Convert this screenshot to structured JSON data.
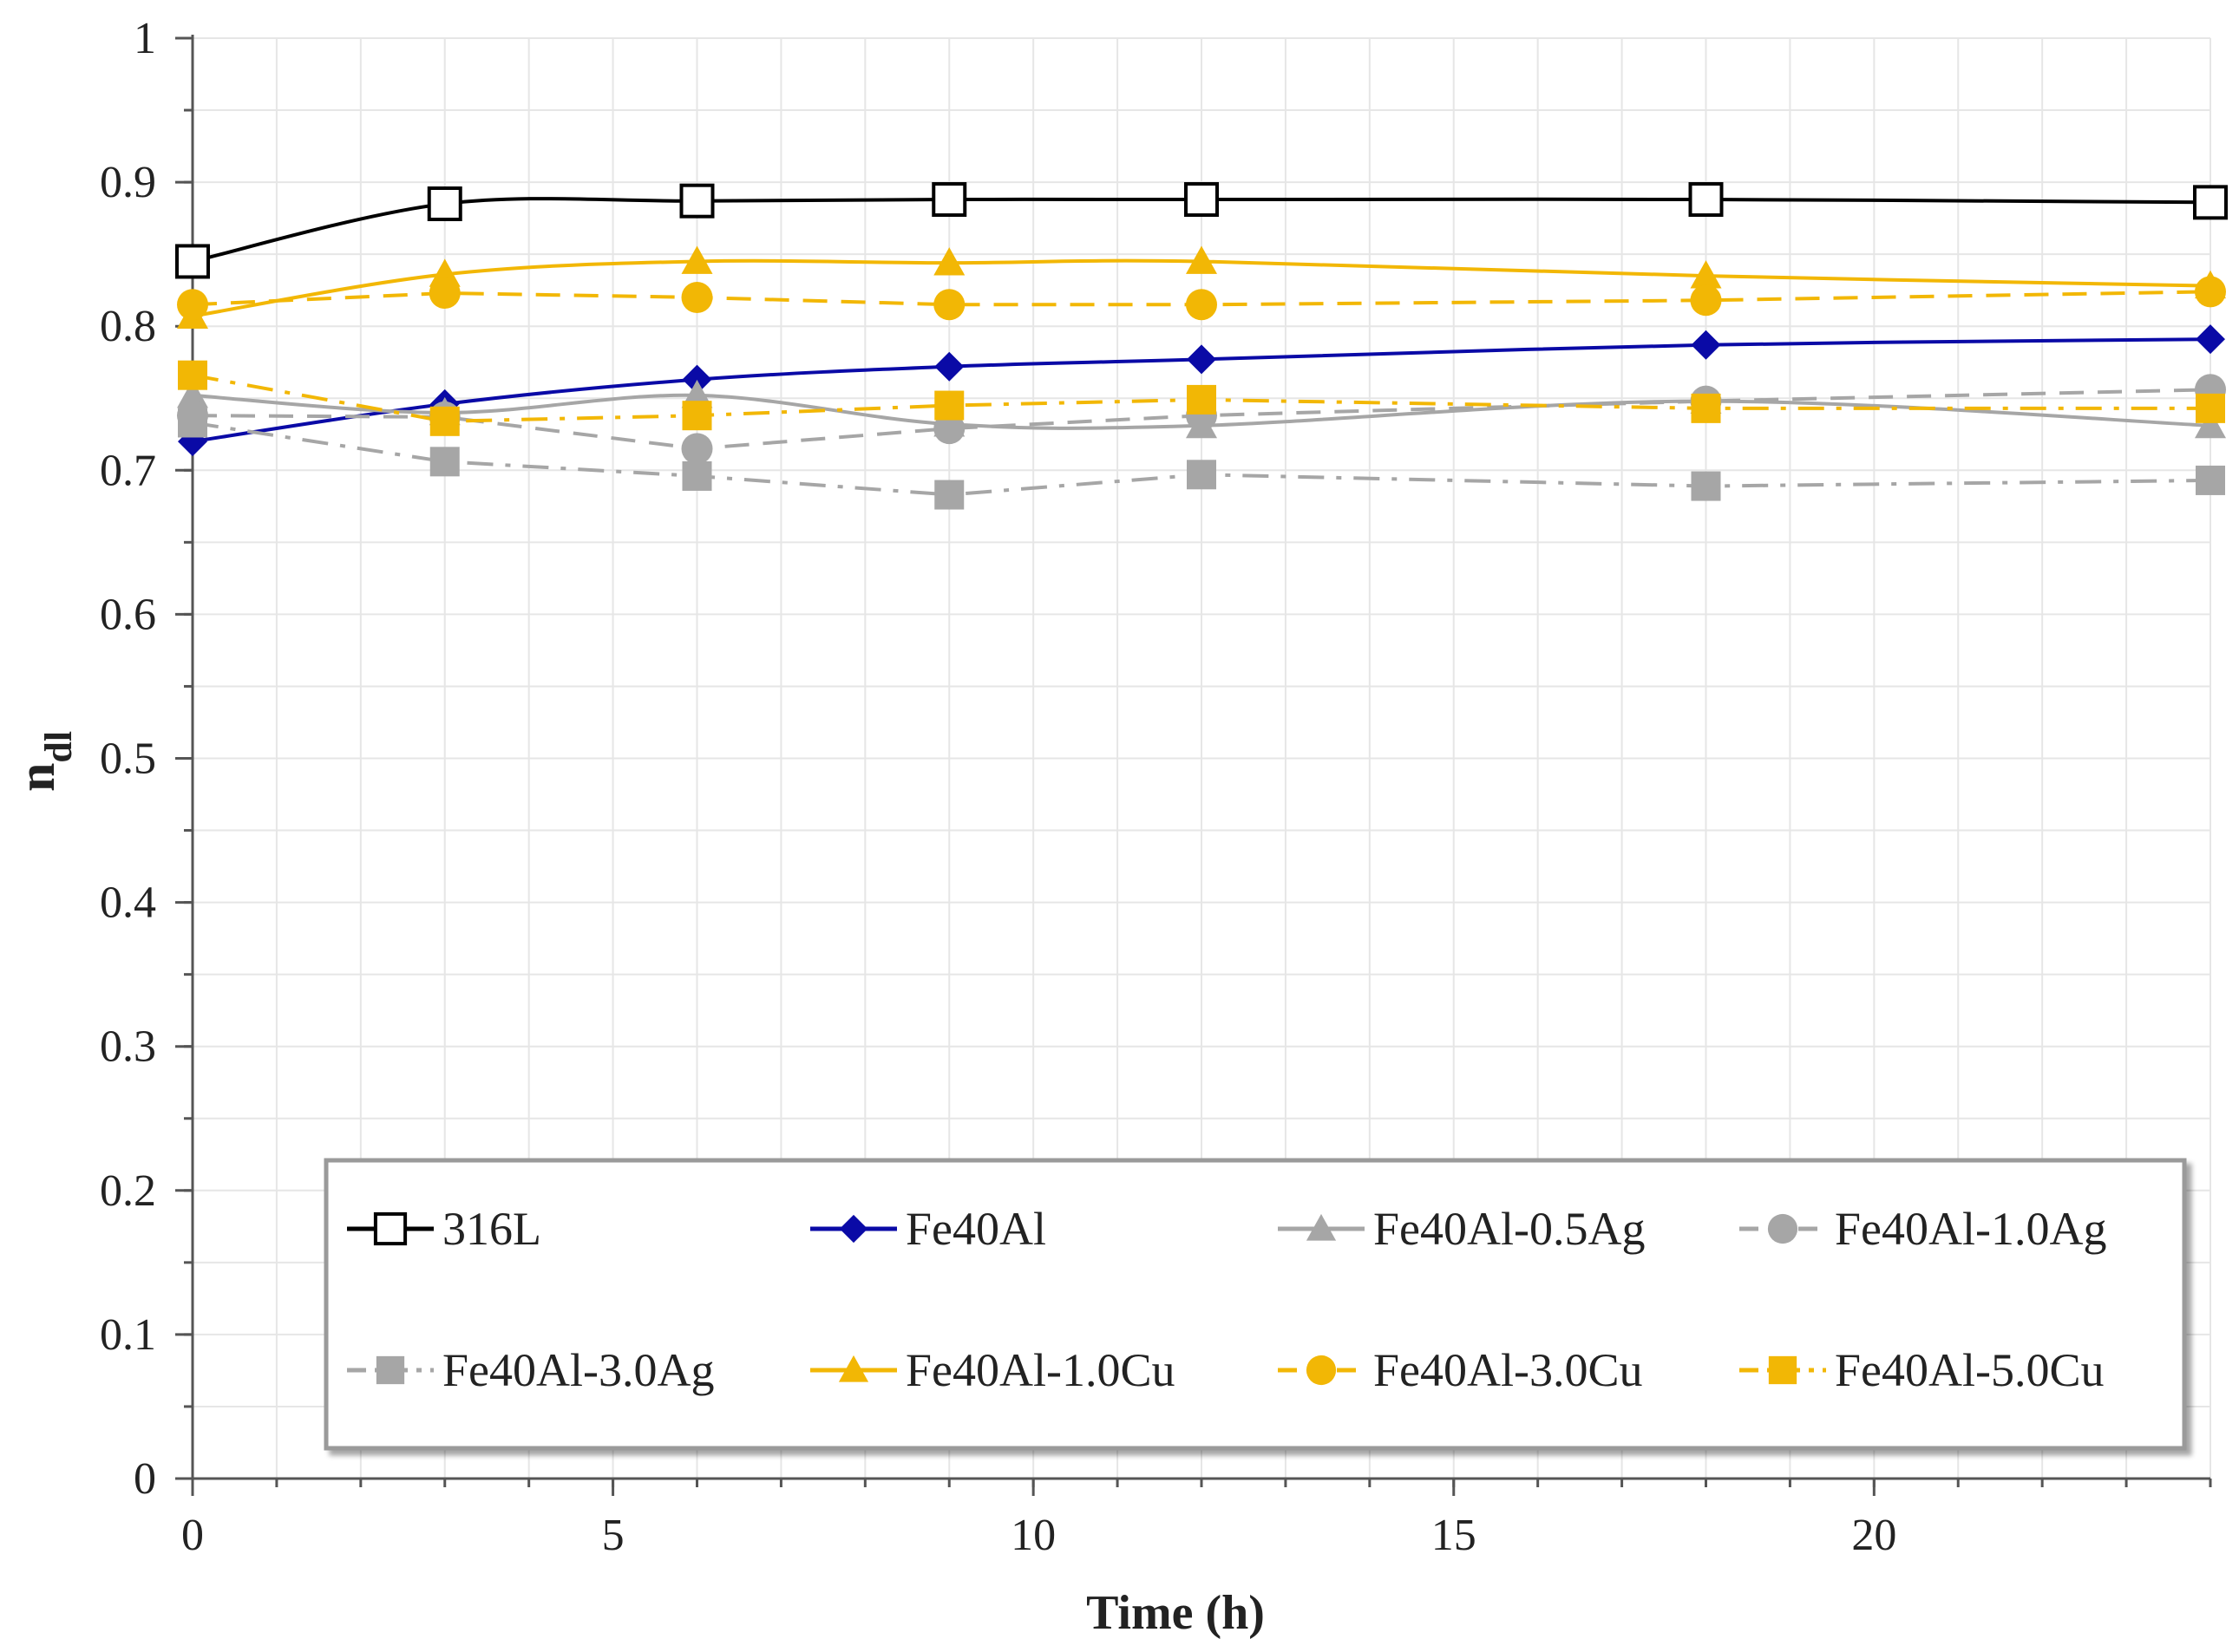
{
  "chart_data": {
    "type": "line",
    "title": "",
    "xlabel": "Time (h)",
    "ylabel_main": "n",
    "ylabel_sub": "dl",
    "xlim": [
      0,
      24
    ],
    "ylim": [
      0,
      1
    ],
    "xticks": [
      0,
      5,
      10,
      15,
      20
    ],
    "xtick_labels": [
      "0",
      "5",
      "10",
      "15",
      "20"
    ],
    "yticks": [
      0,
      0.1,
      0.2,
      0.3,
      0.4,
      0.5,
      0.6,
      0.7,
      0.8,
      0.9,
      1
    ],
    "ytick_labels": [
      "0",
      "0.1",
      "0.2",
      "0.3",
      "0.4",
      "0.5",
      "0.6",
      "0.7",
      "0.8",
      "0.9",
      "1"
    ],
    "grid": true,
    "legend_position": "bottom",
    "x": [
      0,
      3,
      6,
      9,
      12,
      18,
      24
    ],
    "series": [
      {
        "name": "316L",
        "values": [
          0.845,
          0.885,
          0.887,
          0.888,
          0.888,
          0.888,
          0.886
        ],
        "color": "#000000",
        "marker": "square-open",
        "dash": "solid",
        "smooth": true
      },
      {
        "name": "Fe40Al",
        "values": [
          0.72,
          0.746,
          0.763,
          0.772,
          0.777,
          0.787,
          0.791
        ],
        "color": "#0a0aa6",
        "marker": "diamond",
        "dash": "solid",
        "smooth": true
      },
      {
        "name": "Fe40Al-0.5Ag",
        "values": [
          0.752,
          0.74,
          0.752,
          0.732,
          0.731,
          0.748,
          0.731
        ],
        "color": "#a6a6a6",
        "marker": "triangle",
        "dash": "solid",
        "smooth": true
      },
      {
        "name": "Fe40Al-1.0Ag",
        "values": [
          0.738,
          0.737,
          0.715,
          0.729,
          0.738,
          0.748,
          0.756
        ],
        "color": "#a6a6a6",
        "marker": "circle",
        "dash": "dash",
        "smooth": false
      },
      {
        "name": "Fe40Al-3.0Ag",
        "values": [
          0.733,
          0.706,
          0.696,
          0.683,
          0.697,
          0.689,
          0.693
        ],
        "color": "#a6a6a6",
        "marker": "square",
        "dash": "dashdot",
        "smooth": false
      },
      {
        "name": "Fe40Al-1.0Cu",
        "values": [
          0.807,
          0.836,
          0.845,
          0.844,
          0.845,
          0.835,
          0.828
        ],
        "color": "#f2b705",
        "marker": "triangle",
        "dash": "solid",
        "smooth": true
      },
      {
        "name": "Fe40Al-3.0Cu",
        "values": [
          0.815,
          0.823,
          0.82,
          0.815,
          0.815,
          0.818,
          0.824
        ],
        "color": "#f2b705",
        "marker": "circle",
        "dash": "dash",
        "smooth": false
      },
      {
        "name": "Fe40Al-5.0Cu",
        "values": [
          0.766,
          0.734,
          0.738,
          0.745,
          0.749,
          0.743,
          0.743
        ],
        "color": "#f2b705",
        "marker": "square",
        "dash": "dashdot",
        "smooth": false
      }
    ]
  }
}
